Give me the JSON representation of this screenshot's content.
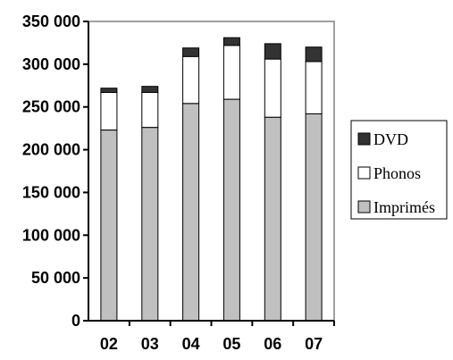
{
  "chart_data": {
    "type": "bar",
    "stacked": true,
    "categories": [
      "02",
      "03",
      "04",
      "05",
      "06",
      "07"
    ],
    "series": [
      {
        "name": "Imprimés",
        "color": "#c0c0c0",
        "values": [
          223000,
          226000,
          254000,
          259000,
          238000,
          242000
        ]
      },
      {
        "name": "Phonos",
        "color": "#ffffff",
        "values": [
          44000,
          41000,
          55000,
          63000,
          68000,
          61000
        ]
      },
      {
        "name": "DVD",
        "color": "#333333",
        "values": [
          5000,
          7000,
          10000,
          9000,
          18000,
          17000
        ]
      }
    ],
    "legend_order": [
      "DVD",
      "Phonos",
      "Imprimés"
    ],
    "legend_position": "right",
    "ylim": [
      0,
      350000
    ],
    "y_ticks": [
      0,
      50000,
      100000,
      150000,
      200000,
      250000,
      300000,
      350000
    ],
    "y_tick_labels": [
      "0",
      "50 000",
      "100 000",
      "150 000",
      "200 000",
      "250 000",
      "300 000",
      "350 000"
    ],
    "grid": false,
    "title": "",
    "xlabel": "",
    "ylabel": ""
  }
}
